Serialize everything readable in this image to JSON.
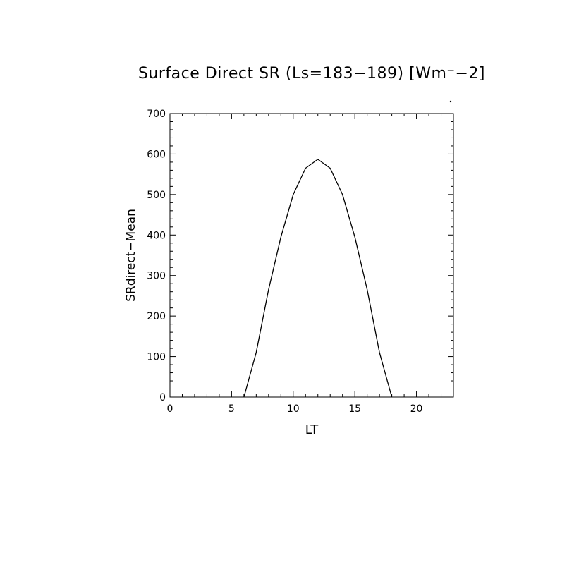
{
  "chart_data": {
    "type": "line",
    "title": "Surface Direct SR (Ls=183−189) [Wm⁻−2]",
    "xlabel": "LT",
    "ylabel": "SRdirect−Mean",
    "xlim": [
      0,
      23
    ],
    "ylim": [
      0,
      700
    ],
    "x_ticks": [
      0,
      5,
      10,
      15,
      20
    ],
    "y_ticks": [
      0,
      100,
      200,
      300,
      400,
      500,
      600,
      700
    ],
    "grid": false,
    "series": [
      {
        "x": [
          0,
          1,
          2,
          3,
          4,
          5,
          6,
          7,
          8,
          9,
          10,
          11,
          12,
          13,
          14,
          15,
          16,
          17,
          18,
          19,
          20,
          21,
          22,
          23
        ],
        "values": [
          0,
          0,
          0,
          0,
          0,
          0,
          0,
          110,
          265,
          395,
          500,
          565,
          587,
          565,
          500,
          395,
          265,
          110,
          0,
          0,
          0,
          0,
          0,
          0
        ]
      }
    ]
  }
}
